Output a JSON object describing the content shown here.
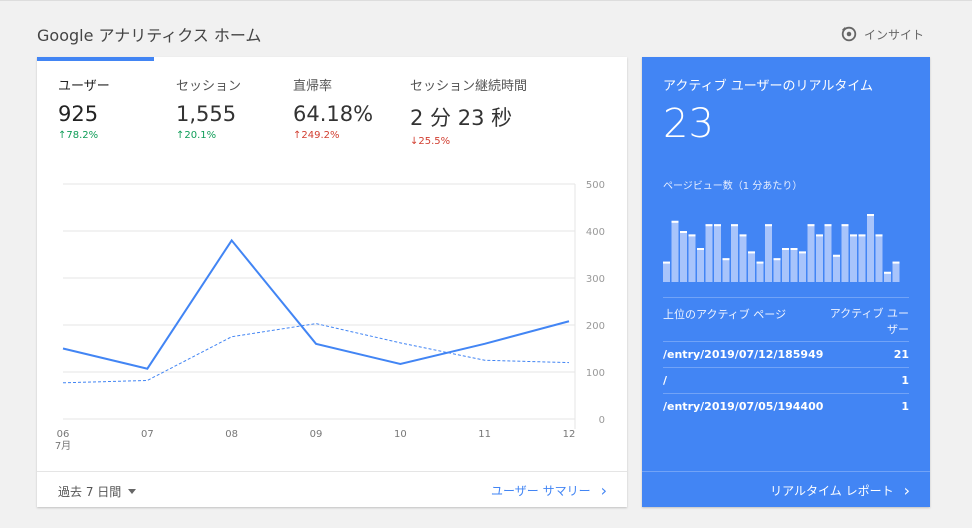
{
  "header": {
    "title": "Google アナリティクス ホーム",
    "insight_label": "インサイト",
    "insight_icon": "insight-icon"
  },
  "metrics": [
    {
      "label": "ユーザー",
      "value": "925",
      "delta": "78.2%",
      "direction": "up"
    },
    {
      "label": "セッション",
      "value": "1,555",
      "delta": "20.1%",
      "direction": "up"
    },
    {
      "label": "直帰率",
      "value": "64.18%",
      "delta": "249.2%",
      "direction": "up-bad"
    },
    {
      "label": "セッション継続時間",
      "value": "2 分 23 秒",
      "delta": "25.5%",
      "direction": "down"
    }
  ],
  "chart_data": {
    "type": "line",
    "x": [
      "06",
      "07",
      "08",
      "09",
      "10",
      "11",
      "12"
    ],
    "x_sublabel": "7月",
    "series": [
      {
        "values": [
          150,
          107,
          380,
          160,
          117,
          160,
          208
        ],
        "style": "solid"
      },
      {
        "values": [
          77,
          82,
          175,
          203,
          162,
          125,
          120
        ],
        "style": "dashed"
      }
    ],
    "yticks": [
      "500",
      "400",
      "300",
      "200",
      "100",
      "0"
    ],
    "ylim": [
      0,
      500
    ],
    "grid": true,
    "colors": {
      "line": "#4285f4",
      "grid": "#e6e6e6"
    }
  },
  "footer": {
    "period_label": "過去 7 日間",
    "summary_link": "ユーザー サマリー"
  },
  "realtime": {
    "title": "アクティブ ユーザーのリアルタイム",
    "count": "23",
    "pageview_label": "ページビュー数（1 分あたり）",
    "pageview_bars": [
      0.3,
      0.9,
      0.75,
      0.7,
      0.5,
      0.85,
      0.85,
      0.35,
      0.85,
      0.7,
      0.45,
      0.3,
      0.85,
      0.35,
      0.5,
      0.5,
      0.45,
      0.85,
      0.7,
      0.85,
      0.4,
      0.85,
      0.7,
      0.7,
      1.0,
      0.7,
      0.15,
      0.3
    ],
    "table_header_page": "上位のアクティブ ページ",
    "table_header_users": "アクティブ ユーザー",
    "rows": [
      {
        "page": "/entry/2019/07/12/185949",
        "users": "21"
      },
      {
        "page": "/",
        "users": "1"
      },
      {
        "page": "/entry/2019/07/05/194400",
        "users": "1"
      }
    ],
    "report_link": "リアルタイム レポート"
  }
}
